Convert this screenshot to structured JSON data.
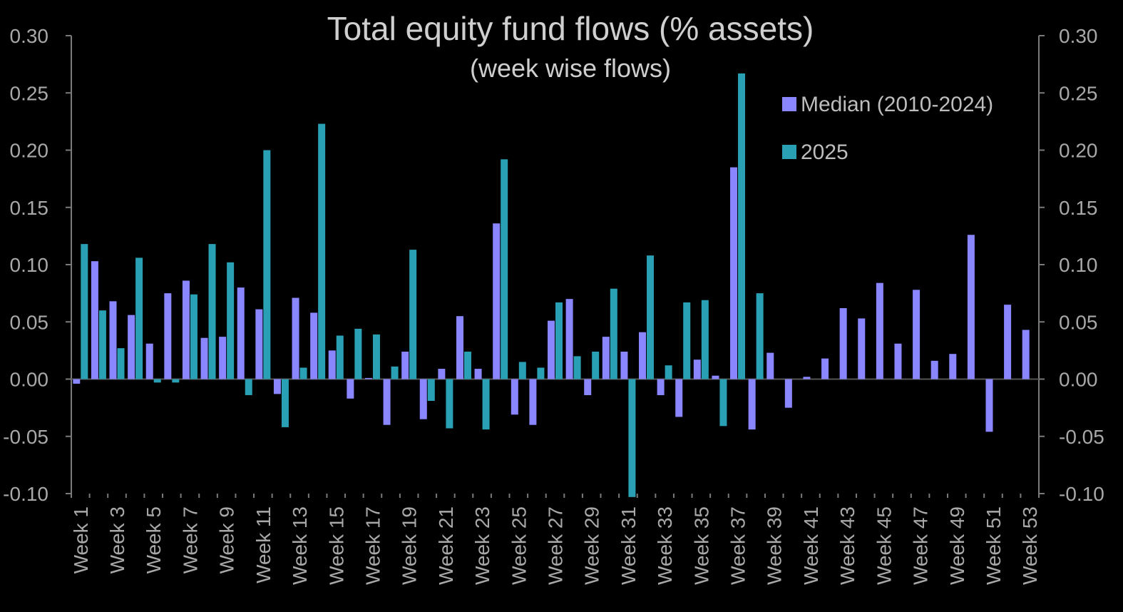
{
  "chart_data": {
    "type": "bar",
    "title": "Total equity fund flows (% assets)",
    "subtitle": "(week wise flows)",
    "ylim": [
      -0.1,
      0.3
    ],
    "yticks": [
      "0.30",
      "0.25",
      "0.20",
      "0.15",
      "0.10",
      "0.05",
      "0.00",
      "-0.05",
      "-0.10"
    ],
    "ytick_values": [
      0.3,
      0.25,
      0.2,
      0.15,
      0.1,
      0.05,
      0.0,
      -0.05,
      -0.1
    ],
    "xtick_labels": [
      "Week 1",
      "Week 3",
      "Week 5",
      "Week 7",
      "Week 9",
      "Week 11",
      "Week 13",
      "Week 15",
      "Week 17",
      "Week 19",
      "Week 21",
      "Week 23",
      "Week 25",
      "Week 27",
      "Week 29",
      "Week 31",
      "Week 33",
      "Week 35",
      "Week 37",
      "Week 39",
      "Week 41",
      "Week 43",
      "Week 45",
      "Week 47",
      "Week 49",
      "Week 51",
      "Week 53"
    ],
    "num_weeks": 53,
    "legend_position": "top-right",
    "series": [
      {
        "name": "Median (2010-2024)",
        "color": "#8a86ff",
        "values": [
          -0.004,
          0.103,
          0.068,
          0.056,
          0.031,
          0.075,
          0.086,
          0.036,
          0.037,
          0.08,
          0.061,
          -0.013,
          0.071,
          0.058,
          0.025,
          -0.017,
          0.001,
          -0.04,
          0.024,
          -0.035,
          0.009,
          0.055,
          0.009,
          0.136,
          -0.031,
          -0.04,
          0.051,
          0.07,
          -0.014,
          0.037,
          0.024,
          0.041,
          -0.014,
          -0.033,
          0.017,
          0.003,
          0.185,
          -0.044,
          0.023,
          -0.025,
          0.002,
          0.018,
          0.062,
          0.053,
          0.084,
          0.031,
          0.078,
          0.016,
          0.022,
          0.126,
          -0.046,
          0.065,
          0.043
        ]
      },
      {
        "name": "2025",
        "color": "#2aa0b4",
        "values": [
          0.118,
          0.06,
          0.027,
          0.106,
          -0.003,
          -0.003,
          0.074,
          0.118,
          0.102,
          -0.014,
          0.2,
          -0.042,
          0.01,
          0.223,
          0.038,
          0.044,
          0.039,
          0.011,
          0.113,
          -0.019,
          -0.043,
          0.024,
          -0.044,
          0.192,
          0.015,
          0.01,
          0.067,
          0.02,
          0.024,
          0.079,
          -0.103,
          0.108,
          0.012,
          0.067,
          0.069,
          -0.041,
          0.267,
          0.075,
          null,
          null,
          null,
          null,
          null,
          null,
          null,
          null,
          null,
          null,
          null,
          null,
          null,
          null,
          null
        ]
      }
    ]
  }
}
